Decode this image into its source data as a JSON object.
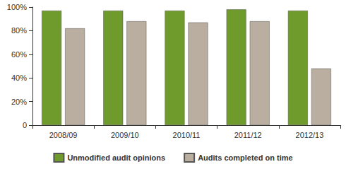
{
  "chart_data": {
    "type": "bar",
    "categories": [
      "2008/09",
      "2009/10",
      "2010/11",
      "2011/12",
      "2012/13"
    ],
    "series": [
      {
        "name": "Unmodified audit opinions",
        "color": "#6f9b2d",
        "values": [
          97,
          97,
          97,
          98,
          97
        ]
      },
      {
        "name": "Audits completed on time",
        "color": "#b9ae9f",
        "values": [
          82,
          88,
          87,
          88,
          48
        ]
      }
    ],
    "ylim": [
      0,
      100
    ],
    "yticks": [
      0,
      {
        "value": 20,
        "label": "20%"
      },
      {
        "value": 40,
        "label": "40%"
      },
      {
        "value": 60,
        "label": "60%"
      },
      {
        "value": 80,
        "label": "80%"
      },
      {
        "value": 100,
        "label": "100%"
      }
    ],
    "grid": false,
    "legend": "bottom"
  }
}
